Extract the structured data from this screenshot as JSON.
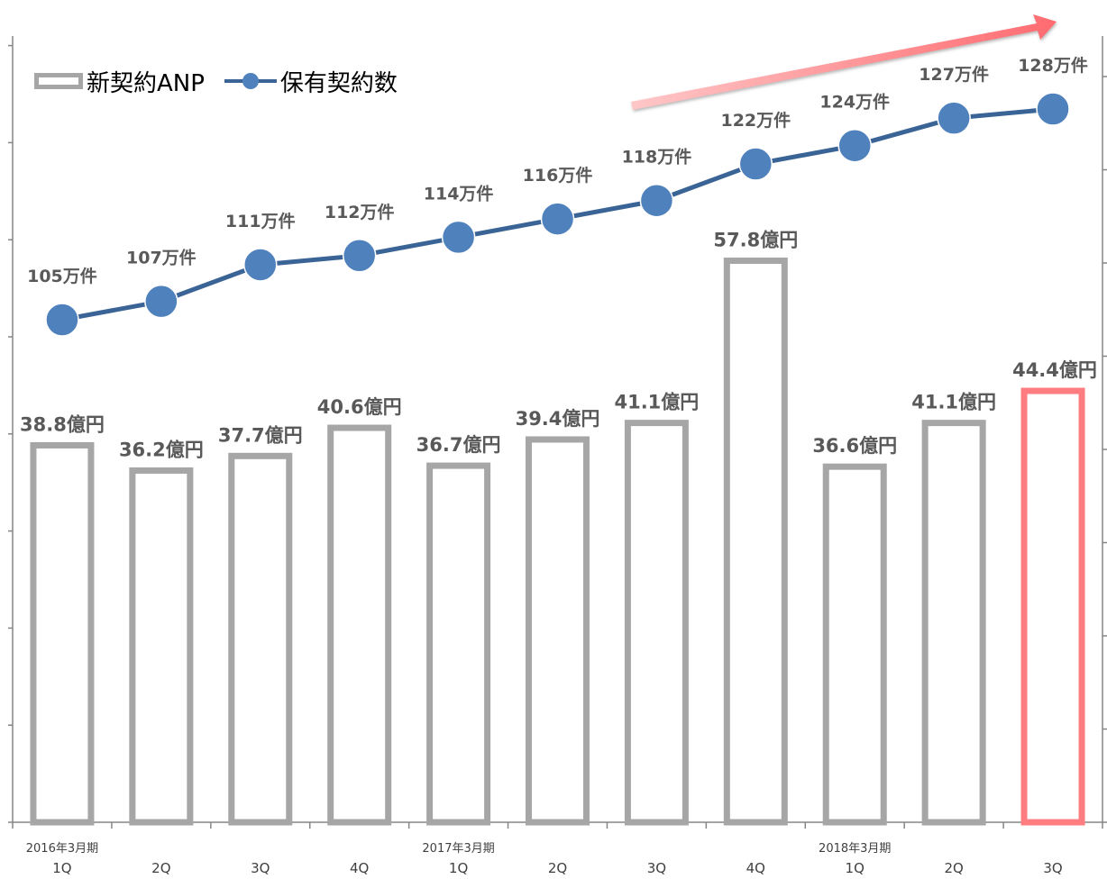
{
  "chart_data": {
    "type": "bar+line",
    "categories": [
      "1Q",
      "2Q",
      "3Q",
      "4Q",
      "1Q",
      "2Q",
      "3Q",
      "4Q",
      "1Q",
      "2Q",
      "3Q"
    ],
    "period_labels": [
      "2016年3月期",
      "",
      "",
      "",
      "2017年3月期",
      "",
      "",
      "",
      "2018年3月期",
      "",
      ""
    ],
    "series": [
      {
        "name": "新契約ANP",
        "type": "bar",
        "values": [
          38.8,
          36.2,
          37.7,
          40.6,
          36.7,
          39.4,
          41.1,
          57.8,
          36.6,
          41.1,
          44.4
        ],
        "data_labels": [
          "38.8億円",
          "36.2億円",
          "37.7億円",
          "40.6億円",
          "36.7億円",
          "39.4億円",
          "41.1億円",
          "57.8億円",
          "36.6億円",
          "41.1億円",
          "44.4億円"
        ],
        "color": "#a6a6a6",
        "highlight_color": "#ff7c80",
        "highlight_index": 10
      },
      {
        "name": "保有契約数",
        "type": "line",
        "values": [
          105,
          107,
          111,
          112,
          114,
          116,
          118,
          122,
          124,
          127,
          128
        ],
        "data_labels": [
          "105万件",
          "107万件",
          "111万件",
          "112万件",
          "114万件",
          "116万件",
          "118万件",
          "122万件",
          "124万件",
          "127万件",
          "128万件"
        ],
        "color": "#4f81bd"
      }
    ],
    "legend": "top-left",
    "grid": false,
    "trend_arrow": true
  }
}
